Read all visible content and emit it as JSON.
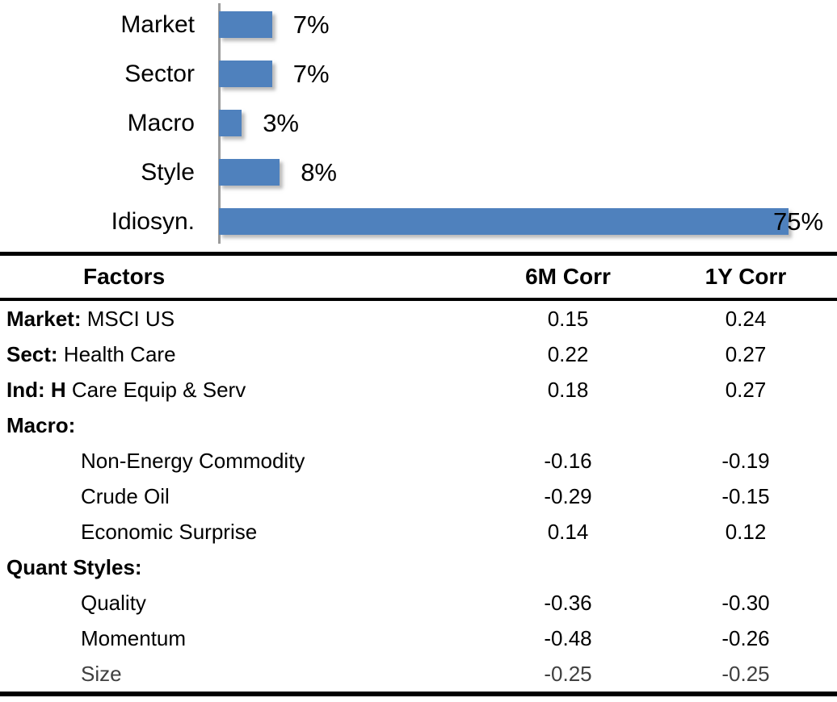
{
  "chart_data": [
    {
      "type": "bar",
      "orientation": "horizontal",
      "title": "",
      "categories": [
        "Market",
        "Sector",
        "Macro",
        "Style",
        "Idiosyn."
      ],
      "values": [
        7,
        7,
        3,
        8,
        75
      ],
      "data_labels": [
        "7%",
        "7%",
        "3%",
        "8%",
        "75%"
      ],
      "xlim": [
        0,
        83
      ],
      "grid": false,
      "legend": false,
      "bar_color": "#4F81BD",
      "axis_color": "#9B9B9B"
    },
    {
      "type": "table",
      "headers": [
        "Factors",
        "6M Corr",
        "1Y Corr"
      ],
      "rows": [
        {
          "label_bold": "Market:",
          "label": "MSCI US",
          "indent": false,
          "muted": false,
          "corr_6m": "0.15",
          "corr_1y": "0.24"
        },
        {
          "label_bold": "Sect:",
          "label": "Health Care",
          "indent": false,
          "muted": false,
          "corr_6m": "0.22",
          "corr_1y": "0.27"
        },
        {
          "label_bold": "Ind: H",
          "label": "Care Equip & Serv",
          "indent": false,
          "muted": false,
          "corr_6m": "0.18",
          "corr_1y": "0.27"
        },
        {
          "label_bold": "Macro:",
          "label": "",
          "indent": false,
          "muted": false,
          "corr_6m": "",
          "corr_1y": ""
        },
        {
          "label_bold": "",
          "label": "Non-Energy Commodity",
          "indent": true,
          "muted": false,
          "corr_6m": "-0.16",
          "corr_1y": "-0.19"
        },
        {
          "label_bold": "",
          "label": "Crude Oil",
          "indent": true,
          "muted": false,
          "corr_6m": "-0.29",
          "corr_1y": "-0.15"
        },
        {
          "label_bold": "",
          "label": "Economic Surprise",
          "indent": true,
          "muted": false,
          "corr_6m": "0.14",
          "corr_1y": "0.12"
        },
        {
          "label_bold": "Quant Styles:",
          "label": "",
          "indent": false,
          "muted": false,
          "corr_6m": "",
          "corr_1y": ""
        },
        {
          "label_bold": "",
          "label": "Quality",
          "indent": true,
          "muted": false,
          "corr_6m": "-0.36",
          "corr_1y": "-0.30"
        },
        {
          "label_bold": "",
          "label": "Momentum",
          "indent": true,
          "muted": false,
          "corr_6m": "-0.48",
          "corr_1y": "-0.26"
        },
        {
          "label_bold": "",
          "label": "Size",
          "indent": true,
          "muted": true,
          "corr_6m": "-0.25",
          "corr_1y": "-0.25"
        }
      ],
      "muted_color": "#404040"
    }
  ]
}
